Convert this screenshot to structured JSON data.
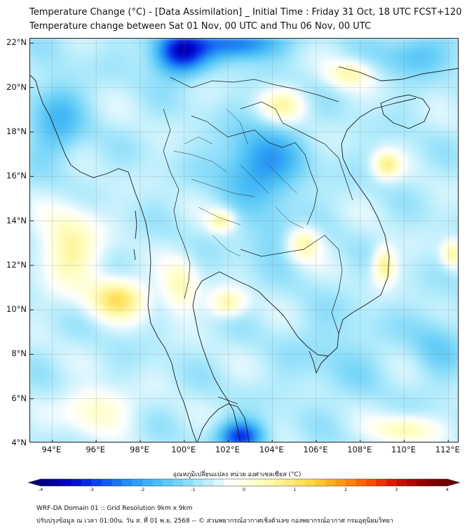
{
  "title_line1": "Temperature Change (°C) - [Data Assimilation] _ Initial Time : Friday 31 Oct, 18 UTC FCST+120",
  "title_line2": "Temperature change between Sat 01 Nov, 00 UTC and Thu 06 Nov, 00 UTC",
  "lat_labels": [
    "22°N",
    "20°N",
    "18°N",
    "16°N",
    "14°N",
    "12°N",
    "10°N",
    "8°N",
    "6°N",
    "4°N"
  ],
  "lon_labels": [
    "94°E",
    "96°E",
    "98°E",
    "100°E",
    "102°E",
    "104°E",
    "106°E",
    "108°E",
    "110°E",
    "112°E"
  ],
  "lat_values": [
    22,
    20,
    18,
    16,
    14,
    12,
    10,
    8,
    6,
    4
  ],
  "lon_values": [
    94,
    96,
    98,
    100,
    102,
    104,
    106,
    108,
    110,
    112
  ],
  "extent": {
    "lon_min": 93.0,
    "lon_max": 112.5,
    "lat_min": 4.0,
    "lat_max": 22.2
  },
  "colorbar": {
    "title": "อุณหภูมิเปลี่ยนแปลง หน่วย องศาเซลเซียส (°C)",
    "min": -4,
    "max": 4,
    "ticks": [
      "-4",
      "-3",
      "-2",
      "-1",
      "0",
      "1",
      "2",
      "3",
      "4"
    ],
    "colors": [
      "#00007a",
      "#0000c8",
      "#0a3cf0",
      "#1e82f5",
      "#3cb4f5",
      "#6ed2f8",
      "#b4ecfc",
      "#ffffff",
      "#ffffc8",
      "#fff08c",
      "#ffd73c",
      "#ffa014",
      "#ff5a00",
      "#dc1400",
      "#9b0000",
      "#640000"
    ]
  },
  "footer_line1": "WRF-DA Domain 01 :: Grid Resolution 9km x 9km",
  "footer_line2": "ปรับปรุงข้อมูล ณ เวลา 01:00น. วัน ส. ที่ 01 พ.ย. 2568 -- © ส่วนพยากรณ์อากาศเชิงตัวเลข กองพยากรณ์อากาศ กรมอุตุนิยมวิทยา",
  "field_features": [
    {
      "lon": 99.8,
      "lat": 21.6,
      "value": -3.4,
      "spread_lon": 1.2,
      "spread_lat": 1.0
    },
    {
      "lon": 102.5,
      "lat": 22.0,
      "value": -2.6,
      "spread_lon": 1.8,
      "spread_lat": 0.7
    },
    {
      "lon": 103.5,
      "lat": 16.5,
      "value": -2.2,
      "spread_lon": 1.8,
      "spread_lat": 1.6
    },
    {
      "lon": 102.6,
      "lat": 4.3,
      "value": -3.0,
      "spread_lon": 1.0,
      "spread_lat": 0.7
    },
    {
      "lon": 110.5,
      "lat": 21.5,
      "value": -1.6,
      "spread_lon": 1.5,
      "spread_lat": 0.9
    },
    {
      "lon": 94.2,
      "lat": 18.5,
      "value": -1.7,
      "spread_lon": 1.2,
      "spread_lat": 1.8
    },
    {
      "lon": 104.2,
      "lat": 13.2,
      "value": -1.3,
      "spread_lon": 1.5,
      "spread_lat": 1.2
    },
    {
      "lon": 107.0,
      "lat": 8.0,
      "value": -1.1,
      "spread_lon": 2.0,
      "spread_lat": 2.0
    },
    {
      "lon": 111.5,
      "lat": 8.5,
      "value": -1.3,
      "spread_lon": 1.2,
      "spread_lat": 1.5
    },
    {
      "lon": 97.0,
      "lat": 10.5,
      "value": 1.0,
      "spread_lon": 1.3,
      "spread_lat": 0.9
    },
    {
      "lon": 94.8,
      "lat": 12.8,
      "value": 0.6,
      "spread_lon": 1.3,
      "spread_lat": 1.8
    },
    {
      "lon": 105.4,
      "lat": 13.0,
      "value": 0.7,
      "spread_lon": 0.8,
      "spread_lat": 0.8
    },
    {
      "lon": 109.2,
      "lat": 16.5,
      "value": 0.7,
      "spread_lon": 0.6,
      "spread_lat": 0.6
    },
    {
      "lon": 109.1,
      "lat": 12.0,
      "value": 0.8,
      "spread_lon": 0.5,
      "spread_lat": 0.8
    },
    {
      "lon": 102.0,
      "lat": 10.3,
      "value": 0.5,
      "spread_lon": 0.8,
      "spread_lat": 0.6
    },
    {
      "lon": 101.7,
      "lat": 14.0,
      "value": 0.5,
      "spread_lon": 0.6,
      "spread_lat": 0.5
    },
    {
      "lon": 99.8,
      "lat": 11.0,
      "value": 0.4,
      "spread_lon": 0.8,
      "spread_lat": 1.2
    },
    {
      "lon": 104.5,
      "lat": 19.2,
      "value": 0.4,
      "spread_lon": 1.0,
      "spread_lat": 0.7
    },
    {
      "lon": 107.5,
      "lat": 20.6,
      "value": 0.4,
      "spread_lon": 1.0,
      "spread_lat": 0.6
    },
    {
      "lon": 112.2,
      "lat": 12.5,
      "value": 0.6,
      "spread_lon": 0.5,
      "spread_lat": 0.6
    },
    {
      "lon": 110.0,
      "lat": 4.6,
      "value": 0.5,
      "spread_lon": 1.4,
      "spread_lat": 0.6
    },
    {
      "lon": 96.0,
      "lat": 5.5,
      "value": 0.3,
      "spread_lon": 1.5,
      "spread_lat": 1.0
    }
  ]
}
